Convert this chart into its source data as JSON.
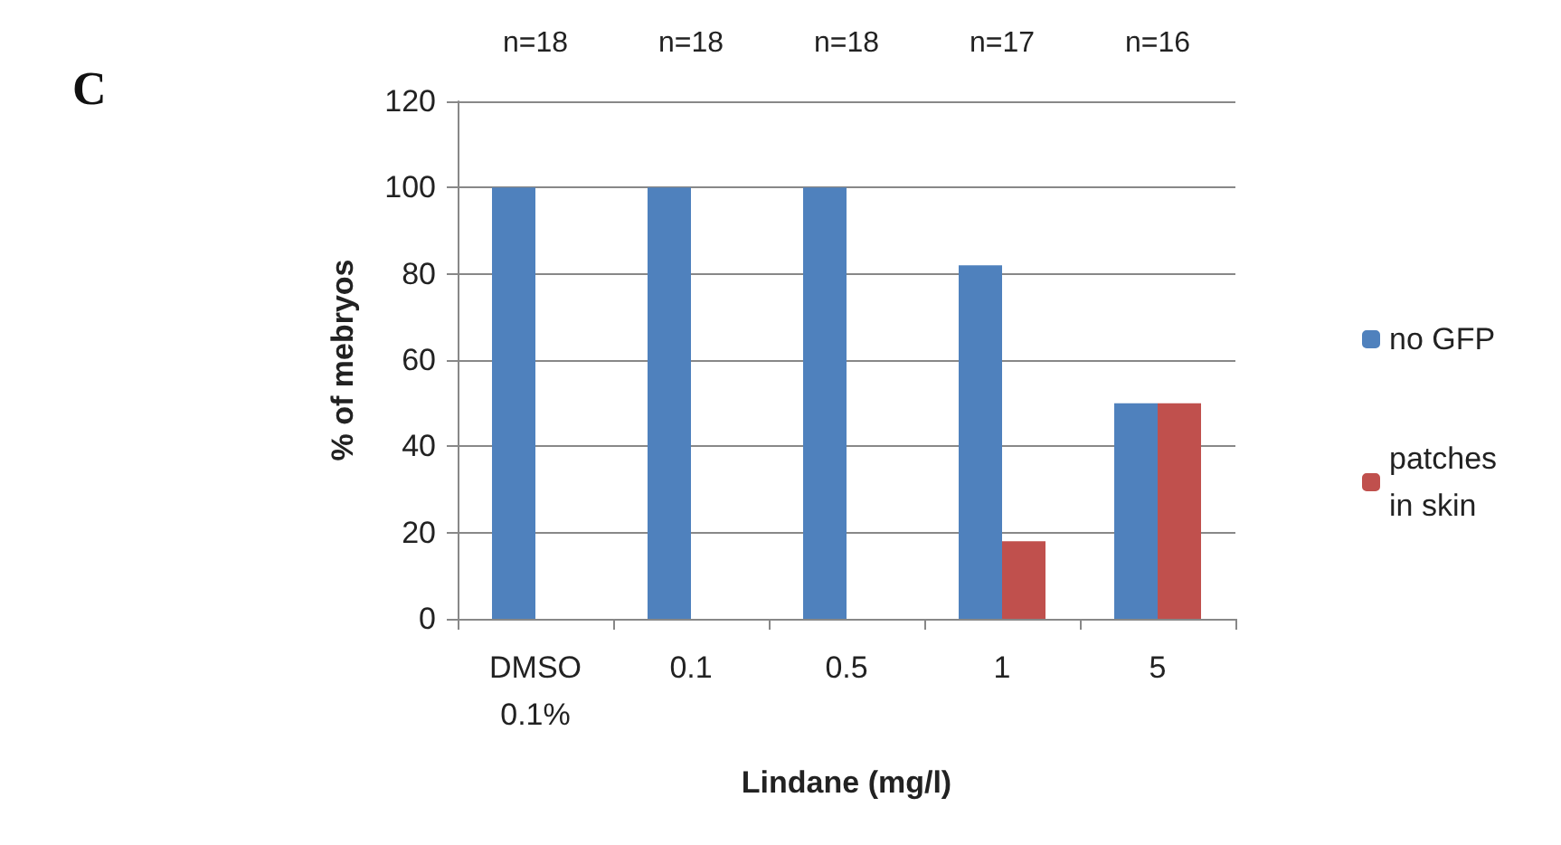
{
  "chart_data": {
    "type": "bar",
    "categories": [
      "DMSO 0.1%",
      "0.1",
      "0.5",
      "1",
      "5"
    ],
    "series": [
      {
        "name": "no GFP",
        "color": "#4f81bd",
        "values": [
          100,
          100,
          100,
          82,
          50
        ]
      },
      {
        "name": "patches in skin",
        "color": "#c0504d",
        "values": [
          0,
          0,
          0,
          18,
          50
        ]
      }
    ],
    "xlabel": "Lindane (mg/l)",
    "ylabel": "% of mebryos",
    "ylim": [
      0,
      120
    ],
    "yticks": [
      0,
      20,
      40,
      60,
      80,
      100,
      120
    ],
    "grid": "y",
    "legend": "right",
    "annotations": [
      "C",
      "n=18",
      "n=18",
      "n=18",
      "n=17",
      "n=16"
    ]
  }
}
